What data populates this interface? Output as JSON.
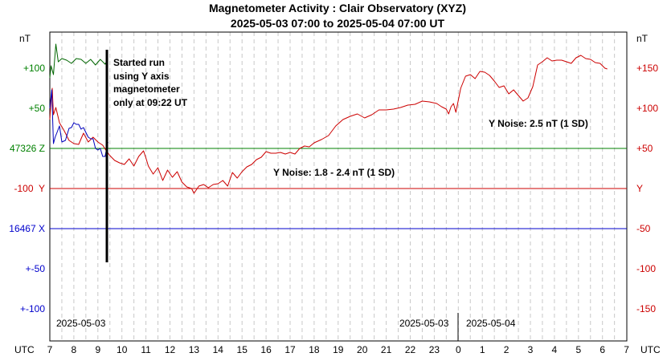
{
  "chart_data": {
    "type": "line",
    "title": "Magnetometer Activity : Clair Observatory (XYZ)",
    "subtitle": "2025-05-03 07:00 to 2025-05-04 07:00 UT",
    "left_unit": "nT",
    "right_unit": "nT",
    "x_axis_label_left": "UTC",
    "x_axis_label_right": "UTC",
    "x_ticks": [
      "7",
      "8",
      "9",
      "10",
      "11",
      "12",
      "13",
      "14",
      "15",
      "16",
      "17",
      "18",
      "19",
      "20",
      "21",
      "22",
      "23",
      "0",
      "1",
      "2",
      "3",
      "4",
      "5",
      "6",
      "7"
    ],
    "left_ticks": [
      {
        "label": "+100",
        "color": "#008000"
      },
      {
        "label": "+50",
        "color": "#008000"
      },
      {
        "label": "47326 Z",
        "color": "#008000"
      },
      {
        "label": "-100  Y",
        "color": "#cc0000"
      },
      {
        "label": "16467 X",
        "color": "#0000cc"
      },
      {
        "label": "+-50",
        "color": "#0000cc"
      },
      {
        "label": "+-100",
        "color": "#0000cc"
      }
    ],
    "right_ticks": [
      {
        "label": "+150",
        "color": "#cc0000"
      },
      {
        "label": "+100",
        "color": "#cc0000"
      },
      {
        "label": "+50",
        "color": "#cc0000"
      },
      {
        "label": "Y",
        "color": "#cc0000"
      },
      {
        "label": "-50",
        "color": "#cc0000"
      },
      {
        "label": "-100",
        "color": "#cc0000"
      },
      {
        "label": "-150",
        "color": "#cc0000"
      }
    ],
    "ylim": [
      -175,
      175
    ],
    "date_labels": [
      "2025-05-03",
      "2025-05-03",
      "2025-05-04"
    ],
    "annotations": {
      "started_run": [
        "Started run",
        "using Y axis",
        "magnetometer",
        "only at 09:22 UT"
      ],
      "noise_1": "Y Noise: 1.8 - 2.4 nT (1 SD)",
      "noise_2": "Y Noise: 2.5 nT (1 SD)"
    },
    "series": [
      {
        "name": "Y",
        "color": "#cc0000",
        "x": [
          7.0,
          7.05,
          7.1,
          7.15,
          7.25,
          7.4,
          7.6,
          7.8,
          8.0,
          8.2,
          8.4,
          8.6,
          8.8,
          9.0,
          9.2,
          9.35,
          9.5,
          9.7,
          9.9,
          10.1,
          10.3,
          10.5,
          10.7,
          10.9,
          11.0,
          11.1,
          11.3,
          11.5,
          11.7,
          11.9,
          12.1,
          12.3,
          12.5,
          12.7,
          12.9,
          13.0,
          13.2,
          13.4,
          13.6,
          13.8,
          14.0,
          14.2,
          14.4,
          14.6,
          14.8,
          15.0,
          15.2,
          15.4,
          15.6,
          15.8,
          16.0,
          16.2,
          16.4,
          16.6,
          16.8,
          17.0,
          17.2,
          17.4,
          17.6,
          17.8,
          18.0,
          18.3,
          18.6,
          18.9,
          19.2,
          19.5,
          19.8,
          20.1,
          20.4,
          20.7,
          21.0,
          21.3,
          21.6,
          21.9,
          22.2,
          22.5,
          22.8,
          23.1,
          23.3,
          23.5,
          23.6,
          23.7,
          23.8,
          23.9,
          24.1,
          24.3,
          24.5,
          24.7,
          24.9,
          25.1,
          25.3,
          25.5,
          25.7,
          25.9,
          26.1,
          26.3,
          26.5,
          26.7,
          26.9,
          27.1,
          27.3,
          27.5,
          27.7,
          27.9,
          28.1,
          28.3,
          28.5,
          28.7,
          28.9,
          29.1,
          29.3,
          29.5,
          29.7,
          29.9,
          30.1,
          30.2
        ],
        "y": [
          86,
          110,
          125,
          92,
          101,
          82,
          72,
          60,
          56,
          55,
          69,
          58,
          64,
          58,
          54,
          47,
          41,
          35,
          32,
          30,
          37,
          28,
          40,
          47,
          38,
          28,
          18,
          26,
          10,
          23,
          14,
          21,
          8,
          2,
          0,
          -6,
          3,
          5,
          1,
          5,
          6,
          10,
          3,
          20,
          13,
          21,
          27,
          30,
          36,
          39,
          46,
          44,
          44,
          45,
          43,
          45,
          43,
          50,
          53,
          52,
          57,
          61,
          66,
          78,
          86,
          90,
          93,
          88,
          92,
          98,
          98,
          99,
          101,
          104,
          105,
          109,
          108,
          106,
          102,
          99,
          93,
          102,
          106,
          95,
          125,
          140,
          142,
          137,
          146,
          145,
          141,
          134,
          126,
          128,
          118,
          123,
          116,
          109,
          113,
          127,
          154,
          158,
          163,
          159,
          160,
          160,
          158,
          156,
          163,
          166,
          162,
          161,
          157,
          156,
          150,
          149
        ]
      },
      {
        "name": "Z",
        "color": "#006600",
        "x": [
          7.0,
          7.05,
          7.15,
          7.25,
          7.35,
          7.5,
          7.7,
          7.9,
          8.1,
          8.3,
          8.5,
          8.7,
          8.9,
          9.1,
          9.3,
          9.4
        ],
        "y": [
          138,
          153,
          142,
          180,
          158,
          162,
          160,
          156,
          162,
          161,
          156,
          161,
          154,
          161,
          155,
          161
        ]
      },
      {
        "name": "X",
        "color": "#0000bb",
        "x": [
          7.0,
          7.08,
          7.15,
          7.22,
          7.3,
          7.4,
          7.5,
          7.65,
          7.8,
          7.9,
          8.0,
          8.1,
          8.2,
          8.3,
          8.4,
          8.5,
          8.6,
          8.7,
          8.8,
          8.9,
          9.0,
          9.1,
          9.2,
          9.3,
          9.35,
          9.42
        ],
        "y": [
          100,
          123,
          56,
          64,
          70,
          78,
          58,
          60,
          75,
          76,
          82,
          80,
          80,
          74,
          76,
          70,
          64,
          62,
          62,
          50,
          48,
          50,
          40,
          40,
          48,
          58
        ]
      }
    ]
  }
}
